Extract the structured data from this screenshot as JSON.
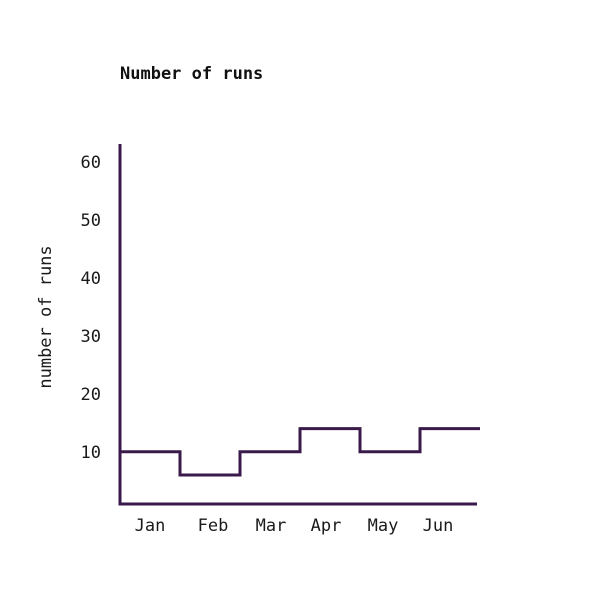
{
  "chart_data": {
    "type": "line",
    "step": true,
    "title": "Number of runs",
    "xlabel": "",
    "ylabel": "number of runs",
    "categories": [
      "Jan",
      "Feb",
      "Mar",
      "Apr",
      "May",
      "Jun"
    ],
    "series": [
      {
        "values": [
          10,
          6,
          10,
          14,
          10,
          14
        ]
      }
    ],
    "ylim": [
      1,
      63
    ],
    "yticks": [
      10,
      20,
      30,
      40,
      50,
      60
    ],
    "grid": false,
    "colors": {
      "line": "#3a1a4a",
      "axis": "#3a1a4a"
    }
  }
}
